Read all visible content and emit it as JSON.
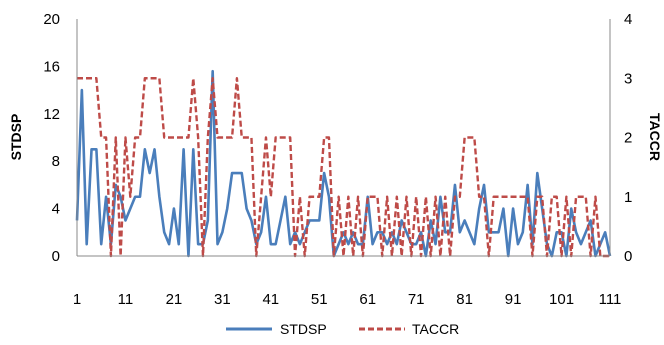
{
  "chart_data": {
    "type": "line",
    "x": [
      1,
      2,
      3,
      4,
      5,
      6,
      7,
      8,
      9,
      10,
      11,
      12,
      13,
      14,
      15,
      16,
      17,
      18,
      19,
      20,
      21,
      22,
      23,
      24,
      25,
      26,
      27,
      28,
      29,
      30,
      31,
      32,
      33,
      34,
      35,
      36,
      37,
      38,
      39,
      40,
      41,
      42,
      43,
      44,
      45,
      46,
      47,
      48,
      49,
      50,
      51,
      52,
      53,
      54,
      55,
      56,
      57,
      58,
      59,
      60,
      61,
      62,
      63,
      64,
      65,
      66,
      67,
      68,
      69,
      70,
      71,
      72,
      73,
      74,
      75,
      76,
      77,
      78,
      79,
      80,
      81,
      82,
      83,
      84,
      85,
      86,
      87,
      88,
      89,
      90,
      91,
      92,
      93,
      94,
      95,
      96,
      97,
      98,
      99,
      100,
      101,
      102,
      103,
      104,
      105,
      106,
      107,
      108,
      109,
      110,
      111
    ],
    "x_ticks": [
      "1",
      "11",
      "21",
      "31",
      "41",
      "51",
      "61",
      "71",
      "81",
      "91",
      "101",
      "111"
    ],
    "ylabel": "STDSP",
    "y2label": "TACCR",
    "ylim": [
      0,
      20
    ],
    "y2lim": [
      0,
      4
    ],
    "y_ticks": [
      "0",
      "4",
      "8",
      "12",
      "16",
      "20"
    ],
    "y2_ticks": [
      "0",
      "1",
      "2",
      "3",
      "4"
    ],
    "grid": false,
    "legend": "bottom",
    "series": [
      {
        "name": "STDSP",
        "axis": "left",
        "color": "#4a7ebb",
        "values": [
          3,
          14,
          1,
          9,
          9,
          1,
          5,
          1,
          6,
          5,
          3,
          4,
          5,
          5,
          9,
          7,
          9,
          5,
          2,
          1,
          4,
          1,
          9,
          0,
          9,
          1,
          1,
          3,
          15.6,
          1,
          2,
          4,
          7,
          7,
          7,
          4,
          3,
          1,
          2,
          5,
          1,
          1,
          3,
          5,
          1,
          2,
          1,
          2,
          3,
          3,
          3,
          7,
          5,
          0,
          1,
          2,
          1,
          2,
          1,
          1,
          5,
          1,
          2,
          2,
          1,
          2,
          1,
          3,
          2,
          1,
          1,
          2,
          0,
          3,
          1,
          5,
          2,
          2,
          6,
          2,
          3,
          2,
          1,
          4,
          6,
          2,
          2,
          2,
          4,
          0,
          4,
          1,
          2,
          6,
          1,
          7,
          4,
          1,
          0,
          2,
          2,
          0,
          4,
          2,
          1,
          2,
          3,
          0,
          1,
          2,
          0
        ]
      },
      {
        "name": "TACCR",
        "axis": "right",
        "color": "#be4b48",
        "values": [
          3,
          3,
          3,
          3,
          3,
          2,
          2,
          0,
          2,
          0,
          2,
          1,
          2,
          2,
          3,
          3,
          3,
          3,
          2,
          2,
          2,
          2,
          2,
          2,
          3,
          2,
          0,
          2,
          3,
          2,
          2,
          2,
          2,
          3,
          2,
          2,
          2,
          0,
          1,
          2,
          1,
          2,
          2,
          2,
          2,
          0,
          1,
          0,
          1,
          1,
          1,
          2,
          2,
          0,
          1,
          0,
          1,
          0,
          1,
          0,
          1,
          1,
          1,
          0,
          1,
          0,
          1,
          0,
          1,
          0,
          1,
          0,
          1,
          0,
          1,
          0,
          1,
          0,
          1,
          1,
          2,
          2,
          2,
          1,
          1,
          0,
          1,
          1,
          1,
          1,
          1,
          1,
          1,
          1,
          0,
          1,
          1,
          0,
          1,
          1,
          0,
          1,
          0,
          1,
          1,
          1,
          0,
          1,
          0,
          0,
          0
        ]
      }
    ]
  }
}
